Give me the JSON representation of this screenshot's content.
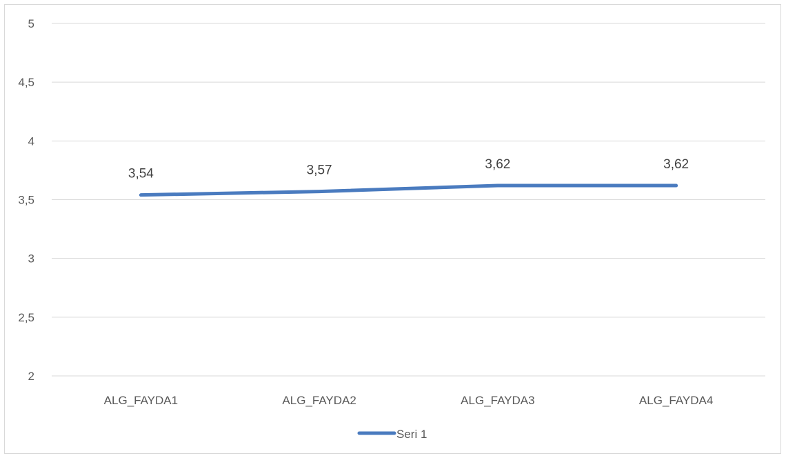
{
  "chart_data": {
    "type": "line",
    "categories": [
      "ALG_FAYDA1",
      "ALG_FAYDA2",
      "ALG_FAYDA3",
      "ALG_FAYDA4"
    ],
    "series": [
      {
        "name": "Seri 1",
        "values": [
          3.54,
          3.57,
          3.62,
          3.62
        ],
        "data_labels": [
          "3,54",
          "3,57",
          "3,62",
          "3,62"
        ],
        "color": "#4a7bbf"
      }
    ],
    "ylim": [
      2,
      5
    ],
    "y_ticks": [
      2,
      2.5,
      3,
      3.5,
      4,
      4.5,
      5
    ],
    "y_tick_labels": [
      "2",
      "2,5",
      "3",
      "3,5",
      "4",
      "4,5",
      "5"
    ],
    "grid": true,
    "gridline_color": "#d9d9d9",
    "legend_position": "bottom",
    "title": "",
    "xlabel": "",
    "ylabel": ""
  }
}
